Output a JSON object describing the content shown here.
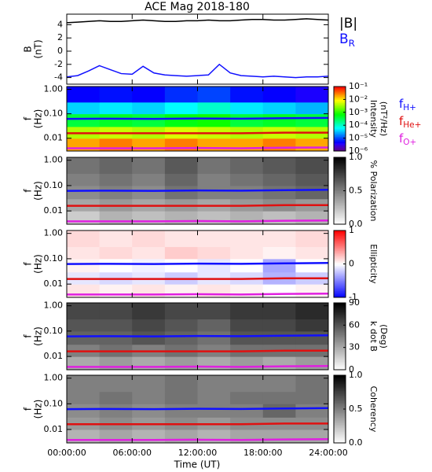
{
  "chart_data": [
    {
      "type": "line",
      "title": "ACE Mag 2018-180",
      "ylabel": [
        "B",
        "(nT)"
      ],
      "ylim": [
        -5,
        5.6
      ],
      "yticks": [
        -4,
        -2,
        0,
        2,
        4
      ],
      "x": [
        0,
        1,
        2,
        3,
        4,
        5,
        6,
        7,
        8,
        9,
        10,
        11,
        12,
        13,
        14,
        15,
        16,
        17,
        18,
        19,
        20,
        21,
        22,
        23,
        24
      ],
      "series": [
        {
          "name": "|B|",
          "color": "#000000",
          "values": [
            4.3,
            4.4,
            4.5,
            4.6,
            4.5,
            4.5,
            4.6,
            4.7,
            4.6,
            4.5,
            4.5,
            4.6,
            4.6,
            4.7,
            4.6,
            4.6,
            4.7,
            4.8,
            4.8,
            4.7,
            4.7,
            4.8,
            4.9,
            4.8,
            4.7
          ]
        },
        {
          "name": "B",
          "subscript": "R",
          "color": "#1010ff",
          "values": [
            -3.9,
            -3.7,
            -3.0,
            -2.2,
            -2.8,
            -3.4,
            -3.5,
            -2.3,
            -3.3,
            -3.6,
            -3.7,
            -3.8,
            -3.7,
            -3.6,
            -2.0,
            -3.3,
            -3.7,
            -3.8,
            -3.9,
            -3.8,
            -3.9,
            -4.0,
            -3.9,
            -3.9,
            -3.8
          ]
        }
      ]
    },
    {
      "type": "spectrogram",
      "ylabel": [
        "f",
        "(Hz)"
      ],
      "log": true,
      "ylim": [
        0.003,
        1.3
      ],
      "yticks": [
        {
          "value": 1,
          "label": "1.00"
        },
        {
          "value": 0.1,
          "label": "0.10"
        },
        {
          "value": 0.01,
          "label": "0.01"
        }
      ],
      "t_bins": [
        0,
        3,
        6,
        9,
        12,
        15,
        18,
        21,
        24
      ],
      "f_bins": [
        0.003,
        0.01,
        0.03,
        0.1,
        0.3,
        1.3
      ],
      "colormap": "rainbow",
      "zlog": true,
      "zlim": [
        1e-06,
        0.1
      ],
      "zticks": [
        {
          "value": 0.1,
          "label": "10⁻¹"
        },
        {
          "value": 0.01,
          "label": "10⁻²"
        },
        {
          "value": 0.001,
          "label": "10⁻³"
        },
        {
          "value": 0.0001,
          "label": "10⁻⁴"
        },
        {
          "value": 1e-05,
          "label": "10⁻⁵"
        },
        {
          "value": 1e-06,
          "label": "10⁻⁶"
        }
      ],
      "cbar_label": [
        "Intensity",
        "(nT²/Hz)"
      ],
      "z": [
        [
          0.02,
          0.03,
          0.02,
          0.03,
          0.02,
          0.02,
          0.03,
          0.02
        ],
        [
          0.004,
          0.005,
          0.004,
          0.006,
          0.005,
          0.004,
          0.005,
          0.004
        ],
        [
          0.0004,
          0.0005,
          0.0004,
          0.0006,
          0.0008,
          0.0004,
          0.0005,
          0.0004
        ],
        [
          4e-05,
          5e-05,
          4e-05,
          6e-05,
          0.0001,
          5e-05,
          4e-05,
          3e-05
        ],
        [
          5e-06,
          6e-06,
          5e-06,
          8e-06,
          1e-05,
          6e-06,
          5e-06,
          4e-06
        ]
      ],
      "line_x": [
        0,
        4,
        8,
        12,
        16,
        20,
        24
      ],
      "lines": [
        {
          "name": "f",
          "subscript": "H+",
          "color": "#1010ff",
          "values": [
            0.062,
            0.063,
            0.062,
            0.064,
            0.063,
            0.066,
            0.068
          ]
        },
        {
          "name": "f",
          "subscript": "He+",
          "color": "#e01010",
          "values": [
            0.016,
            0.016,
            0.016,
            0.016,
            0.016,
            0.017,
            0.017
          ]
        },
        {
          "name": "f",
          "subscript": "O+",
          "color": "#e020e0",
          "values": [
            0.0039,
            0.0039,
            0.0039,
            0.004,
            0.0039,
            0.0041,
            0.0042
          ]
        }
      ]
    },
    {
      "type": "spectrogram",
      "ylabel": [
        "f",
        "(Hz)"
      ],
      "log": true,
      "ylim": [
        0.003,
        1.3
      ],
      "yticks": [
        {
          "value": 1,
          "label": "1.00"
        },
        {
          "value": 0.1,
          "label": "0.10"
        },
        {
          "value": 0.01,
          "label": "0.01"
        }
      ],
      "t_bins": [
        0,
        3,
        6,
        9,
        12,
        15,
        18,
        21,
        24
      ],
      "f_bins": [
        0.003,
        0.01,
        0.03,
        0.1,
        0.3,
        1.3
      ],
      "colormap": "gray",
      "zlim": [
        0,
        1
      ],
      "zticks": [
        {
          "value": 0,
          "label": "0.0"
        },
        {
          "value": 0.5,
          "label": "0.5"
        },
        {
          "value": 1,
          "label": "1.0"
        }
      ],
      "cbar_label": [
        "% Polarization"
      ],
      "z": [
        [
          0.2,
          0.3,
          0.25,
          0.3,
          0.25,
          0.3,
          0.25,
          0.3
        ],
        [
          0.35,
          0.4,
          0.35,
          0.4,
          0.35,
          0.4,
          0.45,
          0.4
        ],
        [
          0.45,
          0.5,
          0.45,
          0.55,
          0.5,
          0.5,
          0.55,
          0.6
        ],
        [
          0.5,
          0.55,
          0.5,
          0.6,
          0.5,
          0.55,
          0.6,
          0.65
        ],
        [
          0.55,
          0.6,
          0.55,
          0.65,
          0.55,
          0.6,
          0.65,
          0.7
        ]
      ]
    },
    {
      "type": "spectrogram",
      "ylabel": [
        "f",
        "(Hz)"
      ],
      "log": true,
      "ylim": [
        0.003,
        1.3
      ],
      "yticks": [
        {
          "value": 1,
          "label": "1.00"
        },
        {
          "value": 0.1,
          "label": "0.10"
        },
        {
          "value": 0.01,
          "label": "0.01"
        }
      ],
      "t_bins": [
        0,
        3,
        6,
        9,
        12,
        15,
        18,
        21,
        24
      ],
      "f_bins": [
        0.003,
        0.01,
        0.03,
        0.1,
        0.3,
        1.3
      ],
      "colormap": "bwr",
      "zlim": [
        -1,
        1
      ],
      "zticks": [
        -1,
        0,
        1
      ],
      "cbar_label": [
        "Ellipticity"
      ],
      "z": [
        [
          0.1,
          0.05,
          0.1,
          0.05,
          0.1,
          0.05,
          0,
          0.05
        ],
        [
          -0.1,
          -0.15,
          -0.1,
          -0.2,
          -0.1,
          -0.15,
          -0.3,
          -0.2
        ],
        [
          0.05,
          0,
          -0.05,
          0,
          -0.1,
          0,
          -0.35,
          0
        ],
        [
          0.1,
          0.15,
          0.1,
          0.2,
          0.15,
          0.1,
          0.05,
          0.1
        ],
        [
          0.15,
          0.1,
          0.15,
          0.1,
          0.1,
          0.1,
          0.1,
          0.15
        ]
      ]
    },
    {
      "type": "spectrogram",
      "ylabel": [
        "f",
        "(Hz)"
      ],
      "log": true,
      "ylim": [
        0.003,
        1.3
      ],
      "yticks": [
        {
          "value": 1,
          "label": "1.00"
        },
        {
          "value": 0.1,
          "label": "0.10"
        },
        {
          "value": 0.01,
          "label": "0.01"
        }
      ],
      "t_bins": [
        0,
        3,
        6,
        9,
        12,
        15,
        18,
        21,
        24
      ],
      "f_bins": [
        0.003,
        0.01,
        0.03,
        0.1,
        0.3,
        1.3
      ],
      "colormap": "gray",
      "zlim": [
        0,
        90
      ],
      "zticks": [
        0,
        30,
        60,
        90
      ],
      "cbar_label": [
        "k dot B",
        "(Deg)"
      ],
      "z": [
        [
          30,
          35,
          30,
          35,
          30,
          35,
          30,
          35
        ],
        [
          45,
          50,
          45,
          50,
          45,
          50,
          50,
          50
        ],
        [
          55,
          55,
          60,
          55,
          50,
          60,
          60,
          60
        ],
        [
          60,
          60,
          65,
          60,
          55,
          65,
          65,
          70
        ],
        [
          65,
          65,
          70,
          65,
          65,
          70,
          70,
          75
        ]
      ]
    },
    {
      "type": "spectrogram",
      "ylabel": [
        "f",
        "(Hz)"
      ],
      "log": true,
      "ylim": [
        0.003,
        1.3
      ],
      "yticks": [
        {
          "value": 1,
          "label": "1.00"
        },
        {
          "value": 0.1,
          "label": "0.10"
        },
        {
          "value": 0.01,
          "label": "0.01"
        }
      ],
      "t_bins": [
        0,
        3,
        6,
        9,
        12,
        15,
        18,
        21,
        24
      ],
      "f_bins": [
        0.003,
        0.01,
        0.03,
        0.1,
        0.3,
        1.3
      ],
      "colormap": "gray",
      "zlim": [
        0,
        1
      ],
      "zticks": [
        {
          "value": 0,
          "label": "0.0"
        },
        {
          "value": 0.5,
          "label": "0.5"
        },
        {
          "value": 1,
          "label": "1.0"
        }
      ],
      "cbar_label": [
        "Coherency"
      ],
      "z": [
        [
          0.3,
          0.35,
          0.3,
          0.35,
          0.3,
          0.35,
          0.35,
          0.35
        ],
        [
          0.4,
          0.45,
          0.4,
          0.45,
          0.4,
          0.45,
          0.45,
          0.45
        ],
        [
          0.45,
          0.5,
          0.45,
          0.5,
          0.5,
          0.5,
          0.6,
          0.5
        ],
        [
          0.5,
          0.55,
          0.5,
          0.55,
          0.5,
          0.55,
          0.55,
          0.55
        ],
        [
          0.5,
          0.5,
          0.5,
          0.55,
          0.5,
          0.5,
          0.5,
          0.55
        ]
      ],
      "xlim": [
        0,
        24
      ],
      "xticks": [
        {
          "value": 0,
          "label": "00:00:00"
        },
        {
          "value": 6,
          "label": "06:00:00"
        },
        {
          "value": 12,
          "label": "12:00:00"
        },
        {
          "value": 18,
          "label": "18:00:00"
        },
        {
          "value": 24,
          "label": "24:00:00"
        }
      ],
      "xlabel": "Time (UT)"
    }
  ]
}
